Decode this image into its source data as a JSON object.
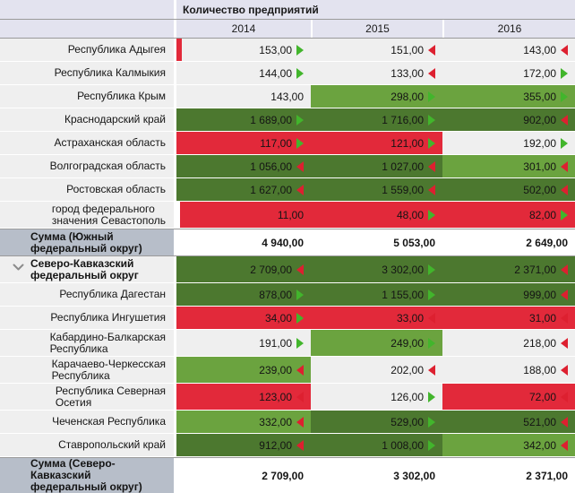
{
  "header": {
    "measure_title": "Количество предприятий",
    "years": [
      "2014",
      "2015",
      "2016"
    ]
  },
  "colors": {
    "header_bg": "#e3e3ef",
    "label_bg": "#efefef",
    "sum_label_bg": "#b7bec9",
    "cell_bg": "#efefef",
    "grid_line": "#9a9a9a",
    "fill_red": "#e2293a",
    "fill_green_mid": "#6ba33f",
    "fill_green_dark": "#4c782f",
    "arrow_up": "#42b52c",
    "arrow_down": "#dd2030"
  },
  "table": {
    "rows": [
      {
        "type": "region",
        "label": "Республика Адыгея",
        "cells": [
          {
            "value": "153,00",
            "arrow": "up",
            "fill": "none",
            "bar": true
          },
          {
            "value": "151,00",
            "arrow": "down",
            "fill": "none"
          },
          {
            "value": "143,00",
            "arrow": "down",
            "fill": "none"
          }
        ]
      },
      {
        "type": "region",
        "label": "Республика Калмыкия",
        "cells": [
          {
            "value": "144,00",
            "arrow": "up",
            "fill": "none"
          },
          {
            "value": "133,00",
            "arrow": "down",
            "fill": "none"
          },
          {
            "value": "172,00",
            "arrow": "up",
            "fill": "none"
          }
        ]
      },
      {
        "type": "region",
        "label": "Республика Крым",
        "cells": [
          {
            "value": "143,00",
            "arrow": null,
            "fill": "none"
          },
          {
            "value": "298,00",
            "arrow": "up",
            "fill": "mid"
          },
          {
            "value": "355,00",
            "arrow": "up",
            "fill": "mid"
          }
        ]
      },
      {
        "type": "region",
        "label": "Краснодарский край",
        "cells": [
          {
            "value": "1 689,00",
            "arrow": "up",
            "fill": "dark"
          },
          {
            "value": "1 716,00",
            "arrow": "up",
            "fill": "dark"
          },
          {
            "value": "902,00",
            "arrow": "down",
            "fill": "dark"
          }
        ]
      },
      {
        "type": "region",
        "label": "Астраханская область",
        "cells": [
          {
            "value": "117,00",
            "arrow": "up",
            "fill": "red"
          },
          {
            "value": "121,00",
            "arrow": "up",
            "fill": "red"
          },
          {
            "value": "192,00",
            "arrow": "up",
            "fill": "none"
          }
        ]
      },
      {
        "type": "region",
        "label": "Волгоградская область",
        "cells": [
          {
            "value": "1 056,00",
            "arrow": "down",
            "fill": "dark"
          },
          {
            "value": "1 027,00",
            "arrow": "down",
            "fill": "dark"
          },
          {
            "value": "301,00",
            "arrow": "down",
            "fill": "mid"
          }
        ]
      },
      {
        "type": "region",
        "label": "Ростовская область",
        "cells": [
          {
            "value": "1 627,00",
            "arrow": "down",
            "fill": "dark"
          },
          {
            "value": "1 559,00",
            "arrow": "down",
            "fill": "dark"
          },
          {
            "value": "502,00",
            "arrow": "down",
            "fill": "dark"
          }
        ]
      },
      {
        "type": "region tall",
        "label": "город федерального\nзначения Севастополь",
        "cells": [
          {
            "value": "11,00",
            "arrow": null,
            "fill": "red",
            "inset": true
          },
          {
            "value": "48,00",
            "arrow": "up",
            "fill": "red"
          },
          {
            "value": "82,00",
            "arrow": "up",
            "fill": "red"
          }
        ]
      },
      {
        "type": "sum",
        "label": "Сумма (Южный\nфедеральный округ)",
        "cells": [
          {
            "value": "4 940,00",
            "arrow": null,
            "fill": "white"
          },
          {
            "value": "5 053,00",
            "arrow": null,
            "fill": "white"
          },
          {
            "value": "2 649,00",
            "arrow": null,
            "fill": "white"
          }
        ]
      },
      {
        "type": "group tall",
        "label": "Северо-Кавказский\nфедеральный округ",
        "chevron": true,
        "cells": [
          {
            "value": "2 709,00",
            "arrow": "down",
            "fill": "dark"
          },
          {
            "value": "3 302,00",
            "arrow": "up",
            "fill": "dark"
          },
          {
            "value": "2 371,00",
            "arrow": "down",
            "fill": "dark"
          }
        ]
      },
      {
        "type": "region",
        "label": "Республика Дагестан",
        "cells": [
          {
            "value": "878,00",
            "arrow": "up",
            "fill": "dark"
          },
          {
            "value": "1 155,00",
            "arrow": "up",
            "fill": "dark"
          },
          {
            "value": "999,00",
            "arrow": "down",
            "fill": "dark"
          }
        ]
      },
      {
        "type": "region",
        "label": "Республика Ингушетия",
        "cells": [
          {
            "value": "34,00",
            "arrow": "up",
            "fill": "red"
          },
          {
            "value": "33,00",
            "arrow": "down",
            "fill": "red"
          },
          {
            "value": "31,00",
            "arrow": "down",
            "fill": "red"
          }
        ]
      },
      {
        "type": "region tall",
        "label": "Кабардино-Балкарская\nРеспублика",
        "cells": [
          {
            "value": "191,00",
            "arrow": "up",
            "fill": "none"
          },
          {
            "value": "249,00",
            "arrow": "up",
            "fill": "mid"
          },
          {
            "value": "218,00",
            "arrow": "down",
            "fill": "none"
          }
        ]
      },
      {
        "type": "region tall",
        "label": "Карачаево-Черкесская\nРеспублика",
        "cells": [
          {
            "value": "239,00",
            "arrow": "down",
            "fill": "mid"
          },
          {
            "value": "202,00",
            "arrow": "down",
            "fill": "none"
          },
          {
            "value": "188,00",
            "arrow": "down",
            "fill": "none"
          }
        ]
      },
      {
        "type": "region tall",
        "label": "Республика Северная\nОсетия",
        "cells": [
          {
            "value": "123,00",
            "arrow": "down",
            "fill": "red"
          },
          {
            "value": "126,00",
            "arrow": "up",
            "fill": "none"
          },
          {
            "value": "72,00",
            "arrow": "down",
            "fill": "red"
          }
        ]
      },
      {
        "type": "region",
        "label": "Чеченская Республика",
        "cells": [
          {
            "value": "332,00",
            "arrow": "down",
            "fill": "mid"
          },
          {
            "value": "529,00",
            "arrow": "up",
            "fill": "dark"
          },
          {
            "value": "521,00",
            "arrow": "down",
            "fill": "dark"
          }
        ]
      },
      {
        "type": "region",
        "label": "Ставропольский край",
        "cells": [
          {
            "value": "912,00",
            "arrow": "down",
            "fill": "dark"
          },
          {
            "value": "1 008,00",
            "arrow": "up",
            "fill": "dark"
          },
          {
            "value": "342,00",
            "arrow": "down",
            "fill": "mid"
          }
        ]
      },
      {
        "type": "sum",
        "label": "Сумма (Северо-Кавказский\nфедеральный округ)",
        "cells": [
          {
            "value": "2 709,00",
            "arrow": null,
            "fill": "white"
          },
          {
            "value": "3 302,00",
            "arrow": null,
            "fill": "white"
          },
          {
            "value": "2 371,00",
            "arrow": null,
            "fill": "white"
          }
        ]
      }
    ]
  },
  "chart_data": {
    "type": "table",
    "title": "Количество предприятий",
    "columns": [
      "2014",
      "2015",
      "2016"
    ],
    "rows": [
      {
        "name": "Республика Адыгея",
        "values": [
          153,
          151,
          143
        ]
      },
      {
        "name": "Республика Калмыкия",
        "values": [
          144,
          133,
          172
        ]
      },
      {
        "name": "Республика Крым",
        "values": [
          143,
          298,
          355
        ]
      },
      {
        "name": "Краснодарский край",
        "values": [
          1689,
          1716,
          902
        ]
      },
      {
        "name": "Астраханская область",
        "values": [
          117,
          121,
          192
        ]
      },
      {
        "name": "Волгоградская область",
        "values": [
          1056,
          1027,
          301
        ]
      },
      {
        "name": "Ростовская область",
        "values": [
          1627,
          1559,
          502
        ]
      },
      {
        "name": "город федерального значения Севастополь",
        "values": [
          11,
          48,
          82
        ]
      },
      {
        "name": "Сумма (Южный федеральный округ)",
        "values": [
          4940,
          5053,
          2649
        ]
      },
      {
        "name": "Северо-Кавказский федеральный округ",
        "values": [
          2709,
          3302,
          2371
        ]
      },
      {
        "name": "Республика Дагестан",
        "values": [
          878,
          1155,
          999
        ]
      },
      {
        "name": "Республика Ингушетия",
        "values": [
          34,
          33,
          31
        ]
      },
      {
        "name": "Кабардино-Балкарская Республика",
        "values": [
          191,
          249,
          218
        ]
      },
      {
        "name": "Карачаево-Черкесская Республика",
        "values": [
          239,
          202,
          188
        ]
      },
      {
        "name": "Республика Северная Осетия",
        "values": [
          123,
          126,
          72
        ]
      },
      {
        "name": "Чеченская Республика",
        "values": [
          332,
          529,
          521
        ]
      },
      {
        "name": "Ставропольский край",
        "values": [
          912,
          1008,
          342
        ]
      },
      {
        "name": "Сумма (Северо-Кавказский федеральный округ)",
        "values": [
          2709,
          3302,
          2371
        ]
      }
    ],
    "legend": {
      "fill_dark_green": "high value band",
      "fill_medium_green": "middle value band",
      "fill_red": "low value band",
      "arrow_right_green": "increase vs previous year",
      "arrow_left_red": "decrease vs previous year"
    }
  }
}
